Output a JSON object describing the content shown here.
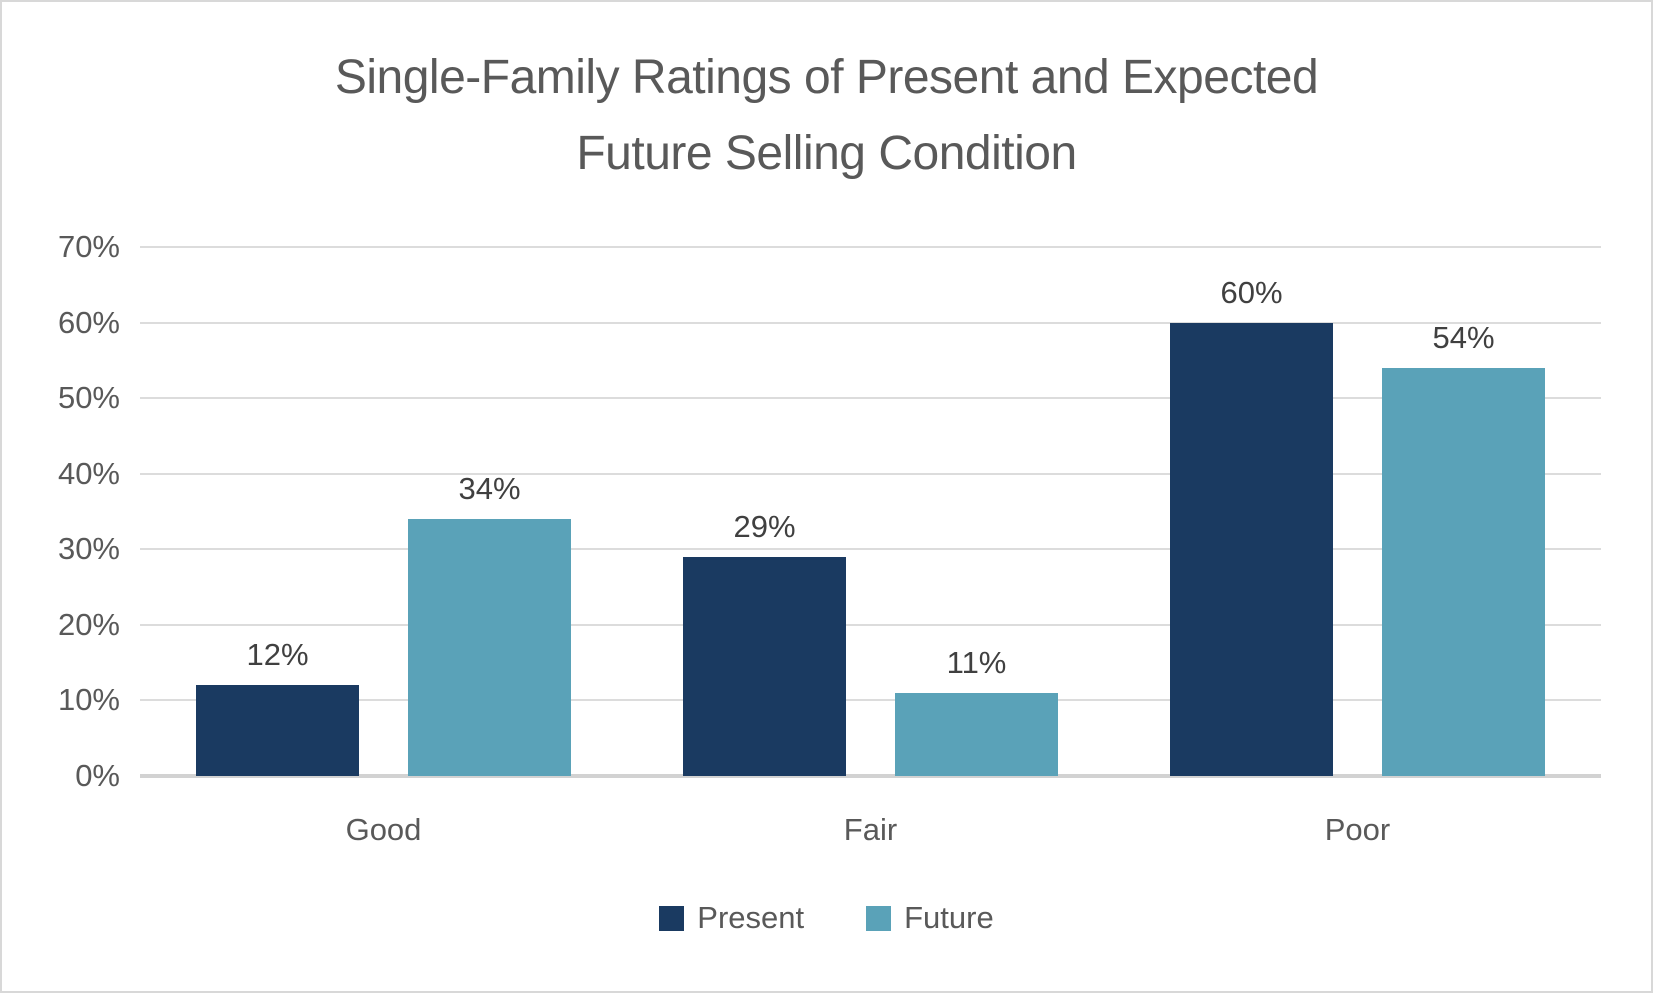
{
  "frame": {
    "background": "#ffffff",
    "border_color": "#d8d8d8"
  },
  "title": {
    "line1": "Single-Family Ratings of Present and Expected",
    "line2": "Future Selling Condition",
    "color": "#595959"
  },
  "chart_data": {
    "type": "bar",
    "title": "Single-Family Ratings of Present and Expected Future Selling Condition",
    "categories": [
      "Good",
      "Fair",
      "Poor"
    ],
    "series": [
      {
        "name": "Present",
        "color": "#1a3a61",
        "values": [
          12,
          29,
          60
        ],
        "labels": [
          "12%",
          "29%",
          "60%"
        ]
      },
      {
        "name": "Future",
        "color": "#5aa2b8",
        "values": [
          34,
          11,
          54
        ],
        "labels": [
          "34%",
          "11%",
          "54%"
        ]
      }
    ],
    "xlabel": "",
    "ylabel": "",
    "ylim": [
      0,
      70
    ],
    "ytick_step": 10,
    "yticks": [
      {
        "value": 0,
        "label": "0%"
      },
      {
        "value": 10,
        "label": "10%"
      },
      {
        "value": 20,
        "label": "20%"
      },
      {
        "value": 30,
        "label": "30%"
      },
      {
        "value": 40,
        "label": "40%"
      },
      {
        "value": 50,
        "label": "50%"
      },
      {
        "value": 60,
        "label": "60%"
      },
      {
        "value": 70,
        "label": "70%"
      }
    ],
    "grid": true,
    "gridline_color": "#dcdcdc",
    "axis_line_color": "#d2d2d2",
    "data_label_color": "#404040",
    "tick_label_color": "#595959",
    "legend_position": "bottom"
  }
}
